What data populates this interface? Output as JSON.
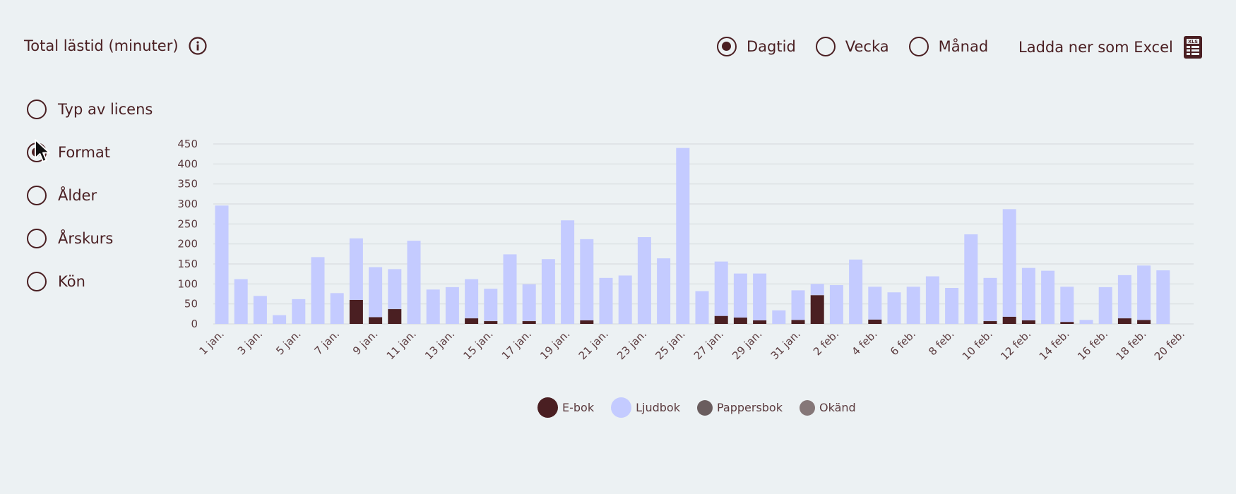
{
  "header": {
    "title": "Total lästid (minuter)",
    "info_icon": "info-icon"
  },
  "period_options": [
    {
      "label": "Dagtid",
      "checked": true
    },
    {
      "label": "Vecka",
      "checked": false
    },
    {
      "label": "Månad",
      "checked": false
    }
  ],
  "download": {
    "label": "Ladda ner som Excel",
    "icon": "xls-file-icon"
  },
  "breakdown_options": [
    {
      "label": "Typ av licens",
      "checked": false
    },
    {
      "label": "Format",
      "checked": true
    },
    {
      "label": "Ålder",
      "checked": false
    },
    {
      "label": "Årskurs",
      "checked": false
    },
    {
      "label": "Kön",
      "checked": false
    }
  ],
  "colors": {
    "text": "#4a1f22",
    "ebok": "#4a1f22",
    "ljudbok": "#c4cbff",
    "pappersbok": "#6a5d5e",
    "okand": "#857778",
    "grid": "#d8dde0"
  },
  "chart_data": {
    "type": "bar",
    "stacked": true,
    "ylim": [
      0,
      450
    ],
    "yticks": [
      0,
      50,
      100,
      150,
      200,
      250,
      300,
      350,
      400,
      450
    ],
    "grid": true,
    "legend_position": "bottom-center",
    "x_tick_labels": [
      "1 jan.",
      "3 jan.",
      "5 jan.",
      "7 jan.",
      "9 jan.",
      "11 jan.",
      "13 jan.",
      "15 jan.",
      "17 jan.",
      "19 jan.",
      "21 jan.",
      "23 jan.",
      "25 jan.",
      "27 jan.",
      "29 jan.",
      "31 jan.",
      "2 feb.",
      "4 feb.",
      "6 feb.",
      "8 feb.",
      "10 feb.",
      "12 feb.",
      "14 feb.",
      "16 feb.",
      "18 feb.",
      "20 feb."
    ],
    "categories": [
      "1 jan.",
      "2 jan.",
      "3 jan.",
      "4 jan.",
      "5 jan.",
      "6 jan.",
      "7 jan.",
      "8 jan.",
      "9 jan.",
      "10 jan.",
      "11 jan.",
      "12 jan.",
      "13 jan.",
      "14 jan.",
      "15 jan.",
      "16 jan.",
      "17 jan.",
      "18 jan.",
      "19 jan.",
      "20 jan.",
      "21 jan.",
      "22 jan.",
      "23 jan.",
      "24 jan.",
      "25 jan.",
      "26 jan.",
      "27 jan.",
      "28 jan.",
      "29 jan.",
      "30 jan.",
      "31 jan.",
      "1 feb.",
      "2 feb.",
      "3 feb.",
      "4 feb.",
      "5 feb.",
      "6 feb.",
      "7 feb.",
      "8 feb.",
      "9 feb.",
      "10 feb.",
      "11 feb.",
      "12 feb.",
      "13 feb.",
      "14 feb.",
      "15 feb.",
      "16 feb.",
      "17 feb.",
      "18 feb.",
      "19 feb.",
      "20 feb."
    ],
    "series": [
      {
        "name": "E-bok",
        "values": [
          0,
          0,
          0,
          0,
          0,
          0,
          0,
          60,
          17,
          37,
          0,
          0,
          0,
          14,
          7,
          0,
          7,
          0,
          0,
          9,
          0,
          0,
          0,
          0,
          0,
          0,
          20,
          16,
          9,
          0,
          10,
          72,
          0,
          0,
          11,
          0,
          0,
          0,
          0,
          0,
          7,
          18,
          9,
          0,
          5,
          0,
          0,
          14,
          10,
          0,
          0
        ]
      },
      {
        "name": "Ljudbok",
        "values": [
          296,
          112,
          70,
          22,
          62,
          167,
          77,
          154,
          125,
          100,
          208,
          86,
          92,
          98,
          81,
          174,
          92,
          162,
          259,
          203,
          115,
          121,
          217,
          164,
          440,
          82,
          136,
          110,
          117,
          34,
          74,
          28,
          97,
          161,
          82,
          79,
          93,
          119,
          90,
          224,
          108,
          269,
          131,
          133,
          88,
          10,
          92,
          108,
          136,
          134,
          0
        ]
      },
      {
        "name": "Pappersbok",
        "values": [
          0,
          0,
          0,
          0,
          0,
          0,
          0,
          0,
          0,
          0,
          0,
          0,
          0,
          0,
          0,
          0,
          0,
          0,
          0,
          0,
          0,
          0,
          0,
          0,
          0,
          0,
          0,
          0,
          0,
          0,
          0,
          0,
          0,
          0,
          0,
          0,
          0,
          0,
          0,
          0,
          0,
          0,
          0,
          0,
          0,
          0,
          0,
          0,
          0,
          0,
          0
        ]
      },
      {
        "name": "Okänd",
        "values": [
          0,
          0,
          0,
          0,
          0,
          0,
          0,
          0,
          0,
          0,
          0,
          0,
          0,
          0,
          0,
          0,
          0,
          0,
          0,
          0,
          0,
          0,
          0,
          0,
          0,
          0,
          0,
          0,
          0,
          0,
          0,
          0,
          0,
          0,
          0,
          0,
          0,
          0,
          0,
          0,
          0,
          0,
          0,
          0,
          0,
          0,
          0,
          0,
          0,
          0,
          0
        ]
      }
    ]
  }
}
